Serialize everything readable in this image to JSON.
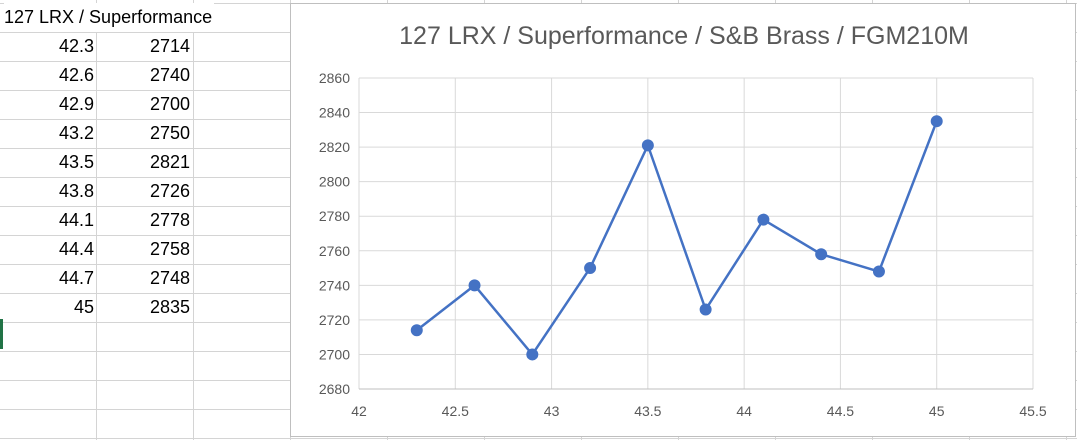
{
  "sheet": {
    "header": "127 LRX / Superformance",
    "rows": [
      [
        "42.3",
        "2714"
      ],
      [
        "42.6",
        "2740"
      ],
      [
        "42.9",
        "2700"
      ],
      [
        "43.2",
        "2750"
      ],
      [
        "43.5",
        "2821"
      ],
      [
        "43.8",
        "2726"
      ],
      [
        "44.1",
        "2778"
      ],
      [
        "44.4",
        "2758"
      ],
      [
        "44.7",
        "2748"
      ],
      [
        "45",
        "2835"
      ]
    ]
  },
  "chart_data": {
    "type": "scatter",
    "title": "127 LRX / Superformance / S&B Brass / FGM210M",
    "xlabel": "",
    "ylabel": "",
    "x": [
      42.3,
      42.6,
      42.9,
      43.2,
      43.5,
      43.8,
      44.1,
      44.4,
      44.7,
      45
    ],
    "y": [
      2714,
      2740,
      2700,
      2750,
      2821,
      2726,
      2778,
      2758,
      2748,
      2835
    ],
    "xlim": [
      42,
      45.5
    ],
    "ylim": [
      2680,
      2860
    ],
    "xticks": [
      "42",
      "42.5",
      "43",
      "43.5",
      "44",
      "44.5",
      "45",
      "45.5"
    ],
    "yticks": [
      "2680",
      "2700",
      "2720",
      "2740",
      "2760",
      "2780",
      "2800",
      "2820",
      "2840",
      "2860"
    ],
    "grid": true,
    "lines": true,
    "markers": true,
    "legend": "none",
    "series_color": "#4472c4"
  }
}
